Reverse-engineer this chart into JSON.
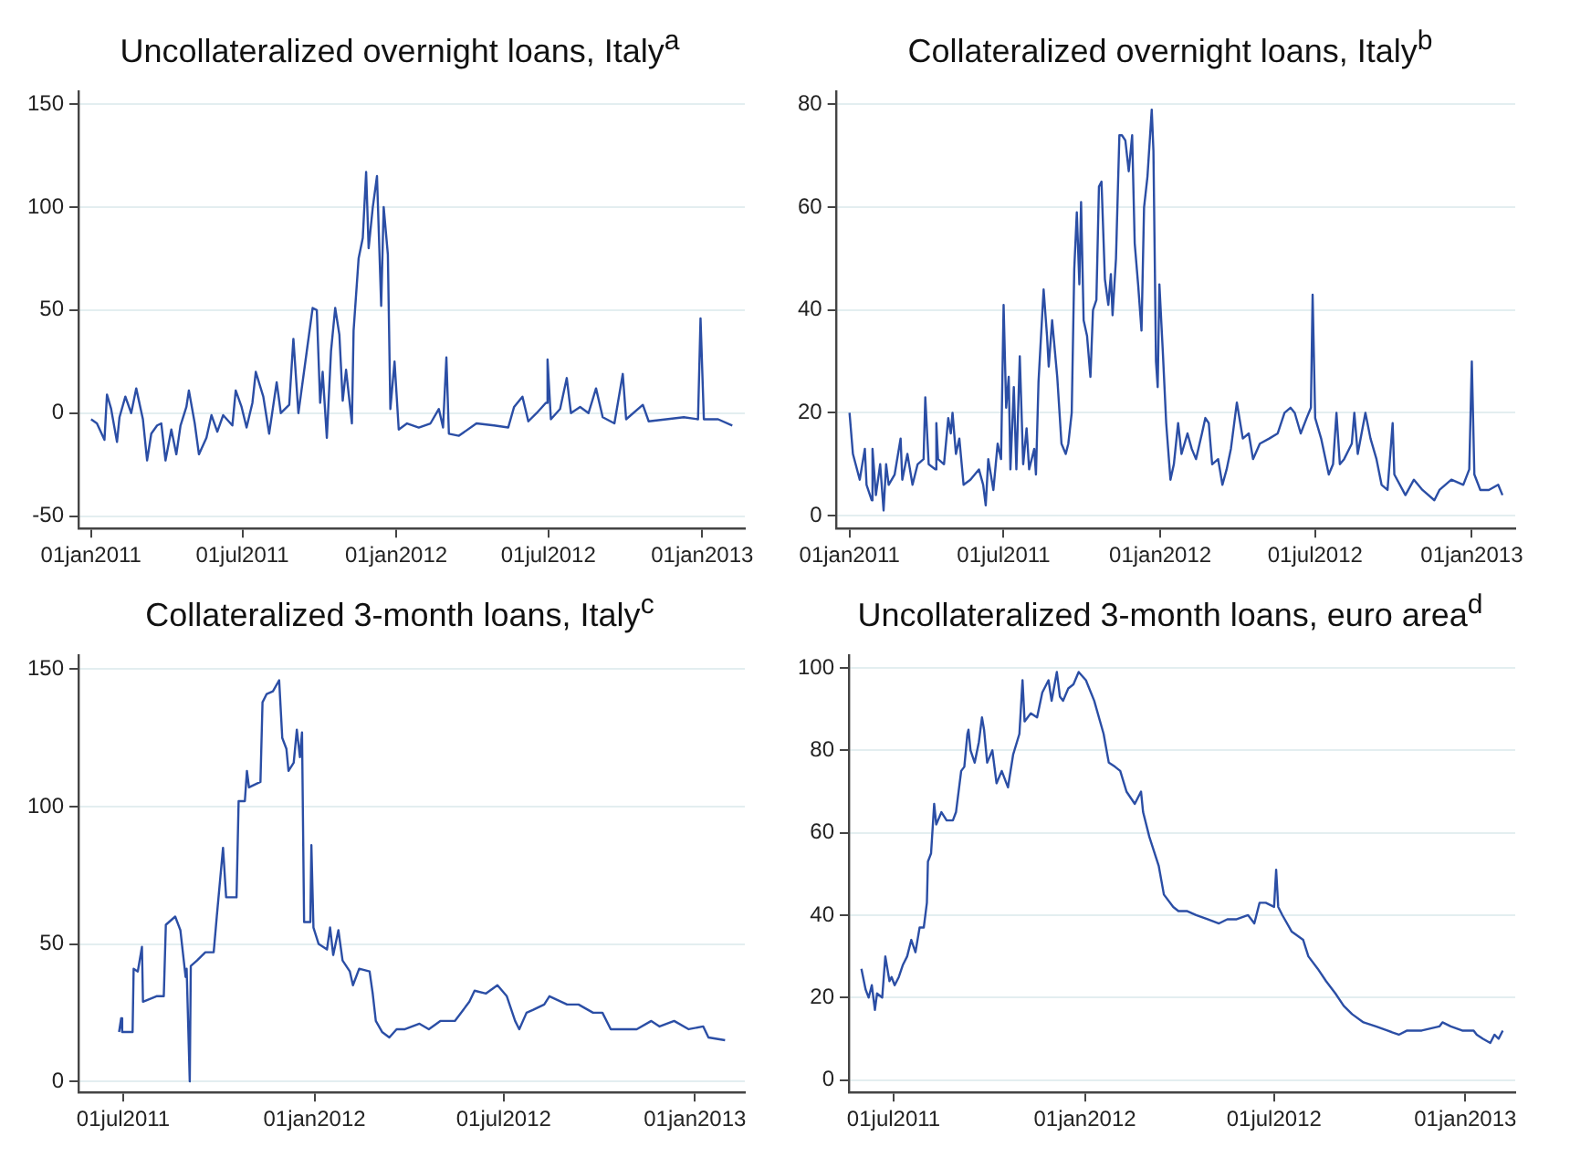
{
  "chart_data": [
    {
      "type": "line",
      "title": "Uncollateralized overnight loans, Italy$^{a}$",
      "grid": "y",
      "marker": "none",
      "legend": false,
      "xlim": [
        "2010-12-17",
        "2013-02-21"
      ],
      "ylim": [
        -56,
        156
      ],
      "yticks": [
        -50,
        0,
        50,
        100,
        150
      ],
      "xticks": [
        {
          "value": "2011-01-01",
          "label": "01jan2011"
        },
        {
          "value": "2011-07-01",
          "label": "01jul2011"
        },
        {
          "value": "2012-01-01",
          "label": "01jan2012"
        },
        {
          "value": "2012-07-01",
          "label": "01jul2012"
        },
        {
          "value": "2013-01-01",
          "label": "01jan2013"
        }
      ],
      "series": [
        {
          "color": "#2b4ea5",
          "x": [
            "2011-01-01",
            "2011-01-08",
            "2011-01-17",
            "2011-01-20",
            "2011-01-25",
            "2011-02-01",
            "2011-02-04",
            "2011-02-11",
            "2011-02-18",
            "2011-02-24",
            "2011-03-04",
            "2011-03-09",
            "2011-03-14",
            "2011-03-21",
            "2011-03-26",
            "2011-03-31",
            "2011-04-07",
            "2011-04-13",
            "2011-04-18",
            "2011-04-25",
            "2011-04-28",
            "2011-05-05",
            "2011-05-10",
            "2011-05-19",
            "2011-05-25",
            "2011-06-01",
            "2011-06-08",
            "2011-06-19",
            "2011-06-23",
            "2011-06-30",
            "2011-07-06",
            "2011-07-13",
            "2011-07-17",
            "2011-07-26",
            "2011-08-02",
            "2011-08-11",
            "2011-08-16",
            "2011-08-26",
            "2011-08-31",
            "2011-09-06",
            "2011-09-16",
            "2011-09-23",
            "2011-09-28",
            "2011-10-02",
            "2011-10-05",
            "2011-10-10",
            "2011-10-15",
            "2011-10-20",
            "2011-10-25",
            "2011-10-29",
            "2011-11-02",
            "2011-11-09",
            "2011-11-11",
            "2011-11-17",
            "2011-11-22",
            "2011-11-26",
            "2011-11-29",
            "2011-12-04",
            "2011-12-09",
            "2011-12-14",
            "2011-12-17",
            "2011-12-22",
            "2011-12-25",
            "2011-12-30",
            "2012-01-04",
            "2012-01-14",
            "2012-01-28",
            "2012-02-11",
            "2012-02-21",
            "2012-02-26",
            "2012-03-01",
            "2012-03-04",
            "2012-03-16",
            "2012-04-06",
            "2012-04-27",
            "2012-05-14",
            "2012-05-21",
            "2012-05-31",
            "2012-06-07",
            "2012-06-17",
            "2012-06-28",
            "2012-06-30",
            "2012-07-04",
            "2012-07-15",
            "2012-07-23",
            "2012-07-28",
            "2012-08-08",
            "2012-08-18",
            "2012-08-27",
            "2012-09-04",
            "2012-09-18",
            "2012-09-28",
            "2012-10-02",
            "2012-10-22",
            "2012-10-29",
            "2012-11-19",
            "2012-12-10",
            "2012-12-27",
            "2012-12-30",
            "2013-01-03",
            "2013-01-20",
            "2013-02-06"
          ],
          "values": [
            -3,
            -5,
            -13,
            9,
            2,
            -14,
            -2,
            8,
            0,
            12,
            -3,
            -23,
            -10,
            -6,
            -5,
            -23,
            -8,
            -20,
            -6,
            3,
            11,
            -5,
            -20,
            -12,
            -1,
            -9,
            -1,
            -6,
            11,
            3,
            -7,
            5,
            20,
            8,
            -10,
            15,
            0,
            4,
            36,
            0,
            30,
            51,
            50,
            5,
            20,
            -12,
            30,
            51,
            38,
            6,
            21,
            -5,
            40,
            75,
            85,
            117,
            80,
            100,
            115,
            52,
            100,
            77,
            2,
            25,
            -8,
            -5,
            -7,
            -5,
            2,
            -7,
            27,
            -10,
            -11,
            -5,
            -6,
            -7,
            3,
            8,
            -4,
            0,
            5,
            26,
            -3,
            2,
            17,
            0,
            3,
            0,
            12,
            -2,
            -5,
            19,
            -3,
            4,
            -4,
            -3,
            -2,
            -3,
            46,
            -3,
            -3,
            -6
          ]
        }
      ]
    },
    {
      "type": "line",
      "title": "Collateralized overnight loans, Italy$^{b}$",
      "grid": "y",
      "marker": "none",
      "legend": false,
      "xlim": [
        "2010-12-17",
        "2013-02-21"
      ],
      "ylim": [
        -2.5,
        82.5
      ],
      "yticks": [
        0,
        20,
        40,
        60,
        80
      ],
      "xticks": [
        {
          "value": "2011-01-01",
          "label": "01jan2011"
        },
        {
          "value": "2011-07-01",
          "label": "01jul2011"
        },
        {
          "value": "2012-01-01",
          "label": "01jan2012"
        },
        {
          "value": "2012-07-01",
          "label": "01jul2012"
        },
        {
          "value": "2013-01-01",
          "label": "01jan2013"
        }
      ],
      "series": [
        {
          "color": "#2b4ea5",
          "x": [
            "2011-01-01",
            "2011-01-05",
            "2011-01-13",
            "2011-01-19",
            "2011-01-21",
            "2011-01-27",
            "2011-01-28",
            "2011-02-01",
            "2011-02-06",
            "2011-02-10",
            "2011-02-13",
            "2011-02-16",
            "2011-02-23",
            "2011-03-02",
            "2011-03-04",
            "2011-03-10",
            "2011-03-16",
            "2011-03-22",
            "2011-03-29",
            "2011-03-31",
            "2011-04-04",
            "2011-04-12",
            "2011-04-13",
            "2011-04-15",
            "2011-04-22",
            "2011-04-27",
            "2011-04-30",
            "2011-05-02",
            "2011-05-06",
            "2011-05-10",
            "2011-05-15",
            "2011-05-23",
            "2011-06-02",
            "2011-06-07",
            "2011-06-10",
            "2011-06-13",
            "2011-06-19",
            "2011-06-24",
            "2011-06-28",
            "2011-07-01",
            "2011-07-04",
            "2011-07-07",
            "2011-07-09",
            "2011-07-13",
            "2011-07-16",
            "2011-07-20",
            "2011-07-24",
            "2011-07-28",
            "2011-07-31",
            "2011-08-06",
            "2011-08-08",
            "2011-08-11",
            "2011-08-17",
            "2011-08-21",
            "2011-08-23",
            "2011-08-27",
            "2011-09-02",
            "2011-09-07",
            "2011-09-12",
            "2011-09-15",
            "2011-09-19",
            "2011-09-22",
            "2011-09-25",
            "2011-09-28",
            "2011-09-30",
            "2011-10-03",
            "2011-10-07",
            "2011-10-11",
            "2011-10-14",
            "2011-10-18",
            "2011-10-21",
            "2011-10-24",
            "2011-10-28",
            "2011-11-01",
            "2011-11-04",
            "2011-11-06",
            "2011-11-10",
            "2011-11-14",
            "2011-11-17",
            "2011-11-21",
            "2011-11-25",
            "2011-11-29",
            "2011-12-02",
            "2011-12-06",
            "2011-12-10",
            "2011-12-13",
            "2011-12-17",
            "2011-12-22",
            "2011-12-24",
            "2011-12-27",
            "2011-12-29",
            "2011-12-31",
            "2012-01-04",
            "2012-01-08",
            "2012-01-13",
            "2012-01-17",
            "2012-01-22",
            "2012-01-26",
            "2012-02-02",
            "2012-02-07",
            "2012-02-12",
            "2012-02-19",
            "2012-02-23",
            "2012-02-27",
            "2012-03-02",
            "2012-03-09",
            "2012-03-14",
            "2012-03-19",
            "2012-03-24",
            "2012-03-31",
            "2012-04-07",
            "2012-04-14",
            "2012-04-19",
            "2012-04-27",
            "2012-05-08",
            "2012-05-18",
            "2012-05-26",
            "2012-06-02",
            "2012-06-07",
            "2012-06-14",
            "2012-06-21",
            "2012-06-26",
            "2012-06-28",
            "2012-07-01",
            "2012-07-08",
            "2012-07-17",
            "2012-07-22",
            "2012-07-26",
            "2012-07-30",
            "2012-08-04",
            "2012-08-13",
            "2012-08-16",
            "2012-08-20",
            "2012-08-29",
            "2012-09-04",
            "2012-09-11",
            "2012-09-17",
            "2012-09-24",
            "2012-09-30",
            "2012-10-02",
            "2012-10-15",
            "2012-10-25",
            "2012-11-04",
            "2012-11-18",
            "2012-11-24",
            "2012-12-08",
            "2012-12-22",
            "2012-12-29",
            "2013-01-01",
            "2013-01-04",
            "2013-01-11",
            "2013-01-21",
            "2013-02-01",
            "2013-02-06"
          ],
          "values": [
            20,
            12,
            7,
            13,
            6,
            3,
            13,
            4,
            10,
            1,
            10,
            6,
            8,
            15,
            7,
            12,
            6,
            10,
            11,
            23,
            10,
            9,
            18,
            11,
            10,
            19,
            16,
            20,
            12,
            15,
            6,
            7,
            9,
            6,
            2,
            11,
            5,
            14,
            11,
            41,
            21,
            27,
            9,
            25,
            9,
            31,
            10,
            17,
            9,
            13,
            8,
            26,
            44,
            35,
            29,
            38,
            27,
            14,
            12,
            14,
            20,
            48,
            59,
            45,
            61,
            38,
            35,
            27,
            40,
            42,
            64,
            65,
            46,
            41,
            47,
            39,
            50,
            74,
            74,
            73,
            67,
            74,
            53,
            45,
            36,
            60,
            66,
            79,
            71,
            30,
            25,
            45,
            32,
            18,
            7,
            10,
            18,
            12,
            16,
            13,
            11,
            16,
            19,
            18,
            10,
            11,
            6,
            9,
            13,
            22,
            15,
            16,
            11,
            14,
            15,
            16,
            20,
            21,
            20,
            16,
            19,
            21,
            43,
            19,
            15,
            8,
            10,
            20,
            10,
            11,
            14,
            20,
            12,
            20,
            15,
            11,
            6,
            5,
            18,
            8,
            4,
            7,
            5,
            3,
            5,
            7,
            6,
            9,
            30,
            8,
            5,
            5,
            6,
            4
          ]
        }
      ]
    },
    {
      "type": "line",
      "title": "Collateralized 3-month loans, Italy$^{c}$",
      "grid": "y",
      "marker": "none",
      "legend": false,
      "xlim": [
        "2011-05-19",
        "2013-02-18"
      ],
      "ylim": [
        -4,
        155
      ],
      "yticks": [
        0,
        50,
        100,
        150
      ],
      "xticks": [
        {
          "value": "2011-07-01",
          "label": "01jul2011"
        },
        {
          "value": "2012-01-01",
          "label": "01jan2012"
        },
        {
          "value": "2012-07-01",
          "label": "01jul2012"
        },
        {
          "value": "2013-01-01",
          "label": "01jan2013"
        }
      ],
      "series": [
        {
          "color": "#2b4ea5",
          "x": [
            "2011-06-27",
            "2011-06-29",
            "2011-06-30",
            "2011-07-10",
            "2011-07-11",
            "2011-07-15",
            "2011-07-19",
            "2011-07-20",
            "2011-08-02",
            "2011-08-09",
            "2011-08-11",
            "2011-08-20",
            "2011-08-25",
            "2011-08-30",
            "2011-08-31",
            "2011-09-03",
            "2011-09-04",
            "2011-09-10",
            "2011-09-18",
            "2011-09-26",
            "2011-09-29",
            "2011-10-05",
            "2011-10-08",
            "2011-10-18",
            "2011-10-20",
            "2011-10-26",
            "2011-10-28",
            "2011-10-30",
            "2011-11-10",
            "2011-11-12",
            "2011-11-16",
            "2011-11-22",
            "2011-11-28",
            "2011-12-01",
            "2011-12-05",
            "2011-12-07",
            "2011-12-12",
            "2011-12-15",
            "2011-12-18",
            "2011-12-20",
            "2011-12-22",
            "2011-12-28",
            "2011-12-29",
            "2011-12-31",
            "2012-01-05",
            "2012-01-13",
            "2012-01-16",
            "2012-01-19",
            "2012-01-24",
            "2012-01-28",
            "2012-02-04",
            "2012-02-07",
            "2012-02-13",
            "2012-02-23",
            "2012-02-26",
            "2012-02-29",
            "2012-03-06",
            "2012-03-13",
            "2012-03-20",
            "2012-03-28",
            "2012-04-11",
            "2012-04-20",
            "2012-05-01",
            "2012-05-15",
            "2012-05-29",
            "2012-06-03",
            "2012-06-14",
            "2012-06-25",
            "2012-07-04",
            "2012-07-12",
            "2012-07-16",
            "2012-07-23",
            "2012-07-29",
            "2012-08-09",
            "2012-08-14",
            "2012-08-31",
            "2012-09-11",
            "2012-09-25",
            "2012-10-04",
            "2012-10-12",
            "2012-11-06",
            "2012-11-20",
            "2012-11-28",
            "2012-12-12",
            "2012-12-26",
            "2013-01-09",
            "2013-01-14",
            "2013-01-30"
          ],
          "values": [
            18,
            23,
            18,
            18,
            41,
            40,
            49,
            29,
            31,
            31,
            57,
            60,
            55,
            38,
            41,
            0,
            42,
            44,
            47,
            47,
            60,
            85,
            67,
            67,
            102,
            102,
            113,
            107,
            109,
            138,
            141,
            142,
            146,
            125,
            121,
            113,
            116,
            128,
            118,
            127,
            58,
            58,
            86,
            56,
            50,
            48,
            56,
            46,
            55,
            44,
            40,
            35,
            41,
            40,
            32,
            22,
            18,
            16,
            19,
            19,
            21,
            19,
            22,
            22,
            29,
            33,
            32,
            35,
            31,
            22,
            19,
            25,
            26,
            28,
            31,
            28,
            28,
            25,
            25,
            19,
            19,
            22,
            20,
            22,
            19,
            20,
            16,
            15
          ]
        }
      ]
    },
    {
      "type": "line",
      "title": "Uncollateralized 3-month loans, euro area$^{d}$",
      "grid": "y",
      "marker": "none",
      "legend": false,
      "xlim": [
        "2011-05-19",
        "2013-02-18"
      ],
      "ylim": [
        -3,
        103
      ],
      "yticks": [
        0,
        20,
        40,
        60,
        80,
        100
      ],
      "xticks": [
        {
          "value": "2011-07-01",
          "label": "01jul2011"
        },
        {
          "value": "2012-01-01",
          "label": "01jan2012"
        },
        {
          "value": "2012-07-01",
          "label": "01jul2012"
        },
        {
          "value": "2013-01-01",
          "label": "01jan2013"
        }
      ],
      "series": [
        {
          "color": "#2b4ea5",
          "x": [
            "2011-05-31",
            "2011-06-04",
            "2011-06-07",
            "2011-06-10",
            "2011-06-13",
            "2011-06-15",
            "2011-06-20",
            "2011-06-23",
            "2011-06-27",
            "2011-06-29",
            "2011-07-02",
            "2011-07-06",
            "2011-07-10",
            "2011-07-14",
            "2011-07-18",
            "2011-07-22",
            "2011-07-26",
            "2011-07-30",
            "2011-08-02",
            "2011-08-03",
            "2011-08-06",
            "2011-08-09",
            "2011-08-11",
            "2011-08-16",
            "2011-08-21",
            "2011-08-27",
            "2011-08-30",
            "2011-09-04",
            "2011-09-07",
            "2011-09-10",
            "2011-09-11",
            "2011-09-13",
            "2011-09-17",
            "2011-09-21",
            "2011-09-24",
            "2011-09-26",
            "2011-09-29",
            "2011-10-04",
            "2011-10-08",
            "2011-10-13",
            "2011-10-19",
            "2011-10-24",
            "2011-10-30",
            "2011-11-02",
            "2011-11-04",
            "2011-11-10",
            "2011-11-16",
            "2011-11-21",
            "2011-11-27",
            "2011-11-30",
            "2011-12-05",
            "2011-12-08",
            "2011-12-11",
            "2011-12-16",
            "2011-12-21",
            "2011-12-26",
            "2012-01-02",
            "2012-01-10",
            "2012-01-19",
            "2012-01-24",
            "2012-01-30",
            "2012-02-04",
            "2012-02-10",
            "2012-02-18",
            "2012-02-24",
            "2012-02-26",
            "2012-03-03",
            "2012-03-12",
            "2012-03-17",
            "2012-03-26",
            "2012-03-31",
            "2012-04-08",
            "2012-04-17",
            "2012-04-28",
            "2012-05-09",
            "2012-05-17",
            "2012-05-26",
            "2012-06-06",
            "2012-06-12",
            "2012-06-14",
            "2012-06-17",
            "2012-06-23",
            "2012-07-01",
            "2012-07-03",
            "2012-07-05",
            "2012-07-09",
            "2012-07-18",
            "2012-07-29",
            "2012-08-03",
            "2012-08-12",
            "2012-08-20",
            "2012-08-29",
            "2012-09-06",
            "2012-09-14",
            "2012-09-25",
            "2012-10-07",
            "2012-10-18",
            "2012-10-29",
            "2012-11-06",
            "2012-11-20",
            "2012-12-07",
            "2012-12-10",
            "2012-12-18",
            "2012-12-29",
            "2013-01-09",
            "2013-01-12",
            "2013-01-18",
            "2013-01-25",
            "2013-01-29",
            "2013-02-02",
            "2013-02-06"
          ],
          "values": [
            27,
            22,
            20,
            23,
            17,
            21,
            20,
            30,
            24,
            25,
            23,
            25,
            28,
            30,
            34,
            31,
            37,
            37,
            43,
            53,
            55,
            67,
            62,
            65,
            63,
            63,
            65,
            75,
            76,
            84,
            85,
            80,
            77,
            82,
            88,
            85,
            77,
            80,
            72,
            75,
            71,
            79,
            84,
            97,
            87,
            89,
            88,
            94,
            97,
            92,
            99,
            93,
            92,
            95,
            96,
            99,
            97,
            92,
            84,
            77,
            76,
            75,
            70,
            67,
            70,
            65,
            59,
            52,
            45,
            42,
            41,
            41,
            40,
            39,
            38,
            39,
            39,
            40,
            38,
            40,
            43,
            43,
            42,
            51,
            42,
            40,
            36,
            34,
            30,
            27,
            24,
            21,
            18,
            16,
            14,
            13,
            12,
            11,
            12,
            12,
            13,
            14,
            13,
            12,
            12,
            11,
            10,
            9,
            11,
            10,
            12
          ]
        }
      ]
    }
  ]
}
